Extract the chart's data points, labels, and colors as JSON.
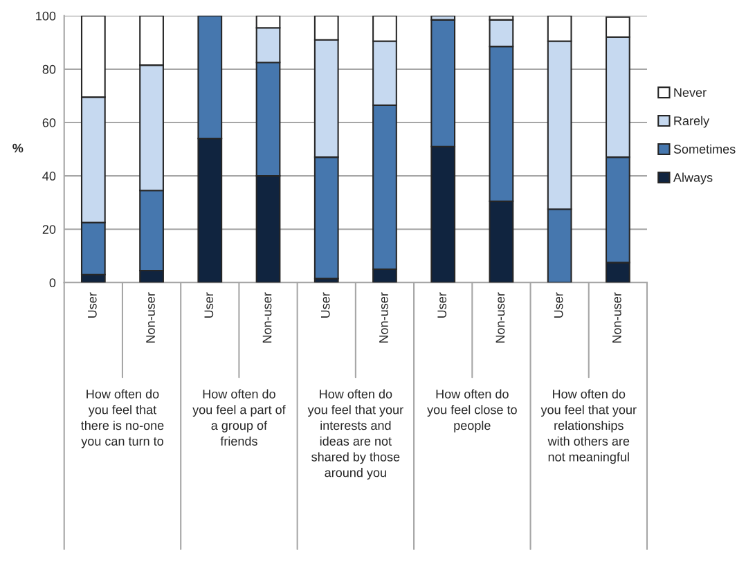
{
  "chart_data": {
    "type": "bar",
    "stacked": true,
    "ylabel": "%",
    "categories": [
      "User",
      "Non-user",
      "User",
      "Non-user",
      "User",
      "Non-user",
      "User",
      "Non-user",
      "User",
      "Non-user"
    ],
    "series": [
      {
        "name": "Always",
        "color": "#10243f",
        "values": [
          3,
          4.5,
          54,
          40,
          1.5,
          5,
          51,
          30.5,
          null,
          7.5
        ]
      },
      {
        "name": "Sometimes",
        "color": "#4677ae",
        "values": [
          19.5,
          30,
          46,
          42.5,
          45.5,
          61.5,
          47.5,
          58,
          27.5,
          39.5
        ]
      },
      {
        "name": "Rarely",
        "color": "#c6d9f0",
        "values": [
          47,
          47,
          null,
          13,
          44,
          24,
          1.5,
          10,
          63,
          45
        ]
      },
      {
        "name": "Never",
        "color": "#ffffff",
        "values": [
          30.5,
          18.5,
          null,
          4.5,
          9,
          9.5,
          null,
          1.5,
          9.5,
          7.5
        ]
      }
    ],
    "annotations": [
      "How often do you feel that there is no-one you can turn to",
      "How often do you feel a part of a group of friends",
      "How often do you feel that your interests and ideas are not shared by those around you",
      "How often do you feel close to people",
      "How often do you feel that your relationships with others are not meaningful"
    ],
    "ylim": [
      0,
      100
    ],
    "yticks": [
      0,
      20,
      40,
      60,
      80,
      100
    ],
    "grid": "y",
    "legend": "right"
  }
}
